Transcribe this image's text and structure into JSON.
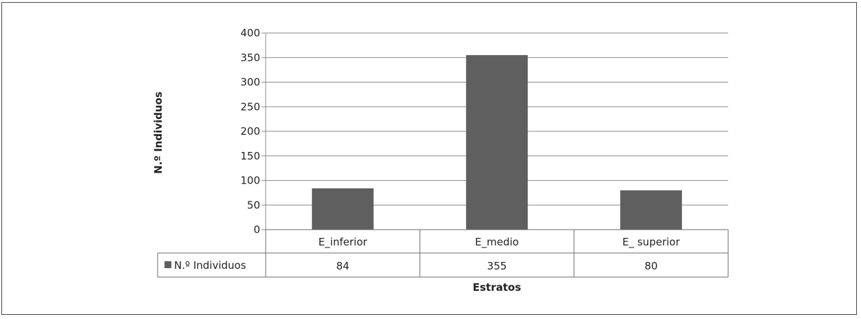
{
  "chart_data": {
    "type": "bar",
    "categories": [
      "E_inferior",
      "E_medio",
      "E_ superior"
    ],
    "series": [
      {
        "name": "N.º Individuos",
        "values": [
          84,
          355,
          80
        ],
        "color": "#5f5f5f"
      }
    ],
    "ylabel": "N.º Individuos",
    "xlabel": "Estratos",
    "ylim": [
      0,
      400
    ],
    "yticks": [
      0,
      50,
      100,
      150,
      200,
      250,
      300,
      350,
      400
    ],
    "grid": true,
    "data_table": true,
    "legend_position": "data-table-left"
  }
}
